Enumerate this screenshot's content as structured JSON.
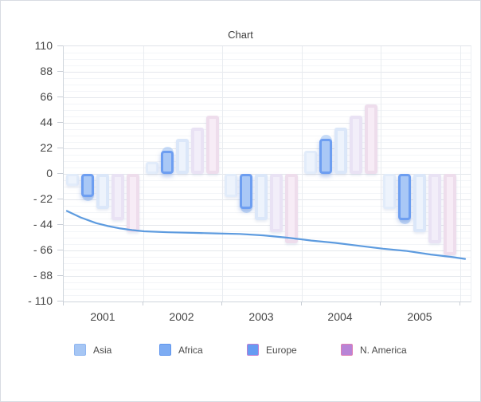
{
  "title": "Chart",
  "chart_data": {
    "type": "combo: grouped bars from zero + line overlay",
    "title": "Chart",
    "categories": [
      "2001",
      "2002",
      "2003",
      "2004",
      "2005"
    ],
    "ylim": [
      -110,
      110
    ],
    "grid": true,
    "legend_position": "bottom",
    "y_ticks": {
      "values": [
        110,
        88,
        66,
        44,
        22,
        0,
        -22,
        -44,
        -66,
        -88,
        -110
      ],
      "labels": [
        "110",
        "88",
        "66",
        "44",
        "22",
        "0",
        "- 22",
        "- 44",
        "- 66",
        "- 88",
        "- 110"
      ]
    },
    "series": [
      {
        "name": "Asia",
        "type": "bar",
        "values": [
          -10,
          10,
          -20,
          20,
          -30
        ],
        "fill": "#edf3fc",
        "border": "#e2ecfa"
      },
      {
        "name": "Africa",
        "type": "bar",
        "values": [
          -20,
          20,
          -30,
          30,
          -40
        ],
        "fill": "#a9c8f6",
        "border": "#6d9ef1",
        "marker": "circle",
        "marker_color": "rgba(150,190,243,0.5)"
      },
      {
        "name": "Europe",
        "type": "bar",
        "values": [
          -30,
          30,
          -40,
          40,
          -50
        ],
        "fill": "#edf3fc",
        "border": "#dbe7f9"
      },
      {
        "name": "N. America",
        "type": "bar",
        "values": [
          -40,
          40,
          -50,
          50,
          -60
        ],
        "fill": "#f2eef9",
        "border": "#e9e2f4"
      },
      {
        "name": "",
        "type": "bar",
        "values": [
          -50,
          50,
          -60,
          60,
          -70
        ],
        "fill": "#f7ecf6",
        "border": "#eeddec"
      }
    ],
    "line_series": {
      "name": "",
      "color": "#5d9bdf",
      "points": [
        [
          4,
          -32
        ],
        [
          12,
          -34.5
        ],
        [
          21,
          -37.5
        ],
        [
          31,
          -40
        ],
        [
          41,
          -42.5
        ],
        [
          56,
          -45
        ],
        [
          71,
          -47
        ],
        [
          86,
          -48.5
        ],
        [
          101,
          -49.5
        ],
        [
          131,
          -50.3
        ],
        [
          161,
          -50.8
        ],
        [
          191,
          -51.3
        ],
        [
          221,
          -51.8
        ],
        [
          251,
          -53
        ],
        [
          281,
          -55
        ],
        [
          311,
          -57.5
        ],
        [
          341,
          -59.5
        ],
        [
          371,
          -62
        ],
        [
          401,
          -64.5
        ],
        [
          431,
          -66.5
        ],
        [
          461,
          -69.5
        ],
        [
          486,
          -71.5
        ],
        [
          504,
          -73.3
        ]
      ]
    },
    "legend": [
      {
        "label": "Asia",
        "fill": "#a6c6f4",
        "border": "#90b6f0"
      },
      {
        "label": "Africa",
        "fill": "#7dacf3",
        "border": "#6096ee"
      },
      {
        "label": "Europe",
        "fill": "#669bf2",
        "border": "#bf7fd2"
      },
      {
        "label": "N. America",
        "fill": "#b884d7",
        "border": "#df7fb4"
      }
    ]
  },
  "colors": {
    "line": "#5d9bdf",
    "grid_major": "#e4e7ec",
    "grid_minor": "#f3f5f8",
    "axis": "#cfd5dc",
    "text": "#454545",
    "frame_border": "#d8dce2"
  }
}
